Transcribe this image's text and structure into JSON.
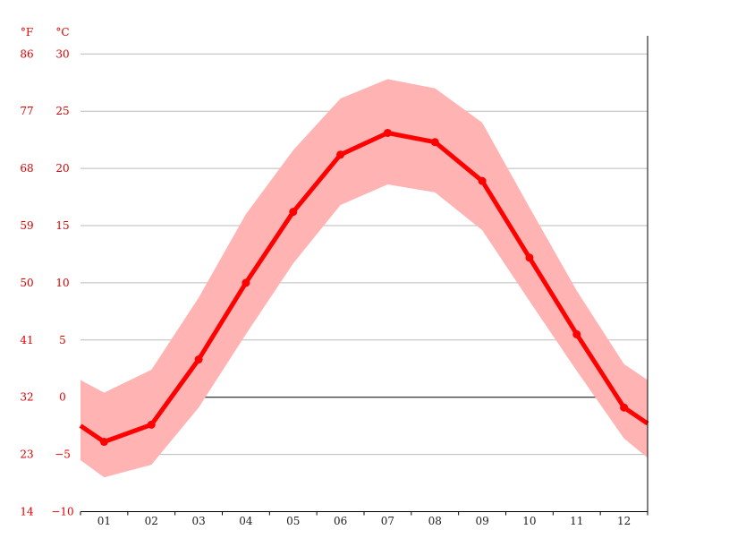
{
  "chart_data": {
    "type": "line",
    "unit_labels": {
      "fahrenheit": "°F",
      "celsius": "°C"
    },
    "categories": [
      "01",
      "02",
      "03",
      "04",
      "05",
      "06",
      "07",
      "08",
      "09",
      "10",
      "11",
      "12"
    ],
    "celsius_ticks": [
      30,
      25,
      20,
      15,
      10,
      5,
      0,
      -5,
      -10
    ],
    "fahrenheit_ticks": [
      86,
      77,
      68,
      59,
      50,
      41,
      32,
      23,
      14
    ],
    "ylim": [
      -10,
      30
    ],
    "grid": true,
    "series": [
      {
        "values": [
          -3.9,
          -2.4,
          3.3,
          10.0,
          16.2,
          21.2,
          23.1,
          22.3,
          18.9,
          12.2,
          5.5,
          -0.9
        ]
      }
    ],
    "band": {
      "max": [
        0.4,
        2.4,
        8.7,
        16.0,
        21.6,
        26.1,
        27.8,
        27.0,
        24.0,
        16.6,
        9.3,
        2.9
      ],
      "min": [
        -7.0,
        -5.9,
        -0.9,
        5.5,
        11.7,
        16.8,
        18.6,
        17.9,
        14.6,
        8.4,
        2.3,
        -3.6
      ]
    },
    "edge_values": {
      "line": [
        -2.5,
        -2.3
      ],
      "max": [
        1.5,
        1.5
      ],
      "min": [
        -5.5,
        -5.3
      ]
    },
    "colors": {
      "line": "#ff0000",
      "band": "#ffb3b3",
      "grid": "#bbbbbb",
      "zero": "#000000",
      "axis": "#000000"
    }
  }
}
